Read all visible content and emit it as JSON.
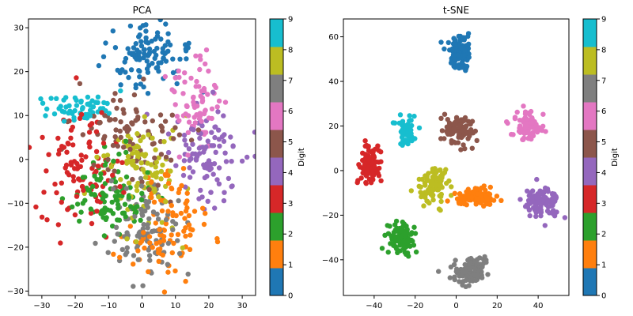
{
  "palette": [
    "#1f77b4",
    "#ff7f0e",
    "#2ca02c",
    "#d62728",
    "#9467bd",
    "#8c564b",
    "#e377c2",
    "#7f7f7f",
    "#bcbd22",
    "#17becf"
  ],
  "chart_data": [
    {
      "type": "scatter",
      "title": "PCA",
      "xlim": [
        -34,
        34
      ],
      "ylim": [
        -31,
        32
      ],
      "xticks": [
        -30,
        -20,
        -10,
        0,
        10,
        20,
        30
      ],
      "yticks": [
        -30,
        -20,
        -10,
        0,
        10,
        20,
        30
      ],
      "colorbar": {
        "label": "Digit",
        "ticks": [
          0,
          1,
          2,
          3,
          4,
          5,
          6,
          7,
          8,
          9
        ]
      },
      "clusters": [
        {
          "digit": 0,
          "cx": 1,
          "cy": 23,
          "sx": 6,
          "sy": 4,
          "n": 110
        },
        {
          "digit": 1,
          "cx": 7,
          "cy": -15,
          "sx": 6,
          "sy": 6,
          "n": 100
        },
        {
          "digit": 2,
          "cx": -10,
          "cy": -8,
          "sx": 6,
          "sy": 4,
          "n": 100
        },
        {
          "digit": 3,
          "cx": -19,
          "cy": -2,
          "sx": 6,
          "sy": 7,
          "n": 100
        },
        {
          "digit": 4,
          "cx": 20,
          "cy": 0,
          "sx": 6,
          "sy": 6,
          "n": 100
        },
        {
          "digit": 5,
          "cx": -3,
          "cy": 5,
          "sx": 7,
          "sy": 6,
          "n": 90
        },
        {
          "digit": 6,
          "cx": 16,
          "cy": 12,
          "sx": 4,
          "sy": 5,
          "n": 80
        },
        {
          "digit": 7,
          "cx": 2,
          "cy": -16,
          "sx": 5,
          "sy": 6,
          "n": 100
        },
        {
          "digit": 8,
          "cx": 0,
          "cy": -2,
          "sx": 6,
          "sy": 6,
          "n": 100
        },
        {
          "digit": 9,
          "cx": -20,
          "cy": 12,
          "sx": 5,
          "sy": 2,
          "n": 60
        }
      ]
    },
    {
      "type": "scatter",
      "title": "t-SNE",
      "xlim": [
        -55,
        55
      ],
      "ylim": [
        -56,
        68
      ],
      "xticks": [
        -40,
        -20,
        0,
        20,
        40
      ],
      "yticks": [
        -40,
        -20,
        0,
        20,
        40,
        60
      ],
      "colorbar": {
        "label": "Digit",
        "ticks": [
          0,
          1,
          2,
          3,
          4,
          5,
          6,
          7,
          8,
          9
        ]
      },
      "clusters": [
        {
          "digit": 0,
          "cx": 1,
          "cy": 53,
          "sx": 3,
          "sy": 3.5,
          "n": 110
        },
        {
          "digit": 1,
          "cx": 10,
          "cy": -12,
          "sx": 5,
          "sy": 2,
          "n": 100
        },
        {
          "digit": 2,
          "cx": -27,
          "cy": -30,
          "sx": 4,
          "sy": 3.5,
          "n": 100
        },
        {
          "digit": 3,
          "cx": -42,
          "cy": 2,
          "sx": 2.5,
          "sy": 4.5,
          "n": 100
        },
        {
          "digit": 4,
          "cx": 42,
          "cy": -14,
          "sx": 4,
          "sy": 3.5,
          "n": 100
        },
        {
          "digit": 5,
          "cx": 1,
          "cy": 18,
          "sx": 4,
          "sy": 4,
          "n": 90
        },
        {
          "digit": 6,
          "cx": 35,
          "cy": 20,
          "sx": 3.5,
          "sy": 3.5,
          "n": 80
        },
        {
          "digit": 7,
          "cx": 7,
          "cy": -45,
          "sx": 4,
          "sy": 3,
          "n": 100
        },
        {
          "digit": 8,
          "cx": -11,
          "cy": -7,
          "sx": 3.5,
          "sy": 4,
          "n": 100
        },
        {
          "digit": 9,
          "cx": -24,
          "cy": 18,
          "sx": 2.5,
          "sy": 3,
          "n": 60
        }
      ]
    }
  ]
}
